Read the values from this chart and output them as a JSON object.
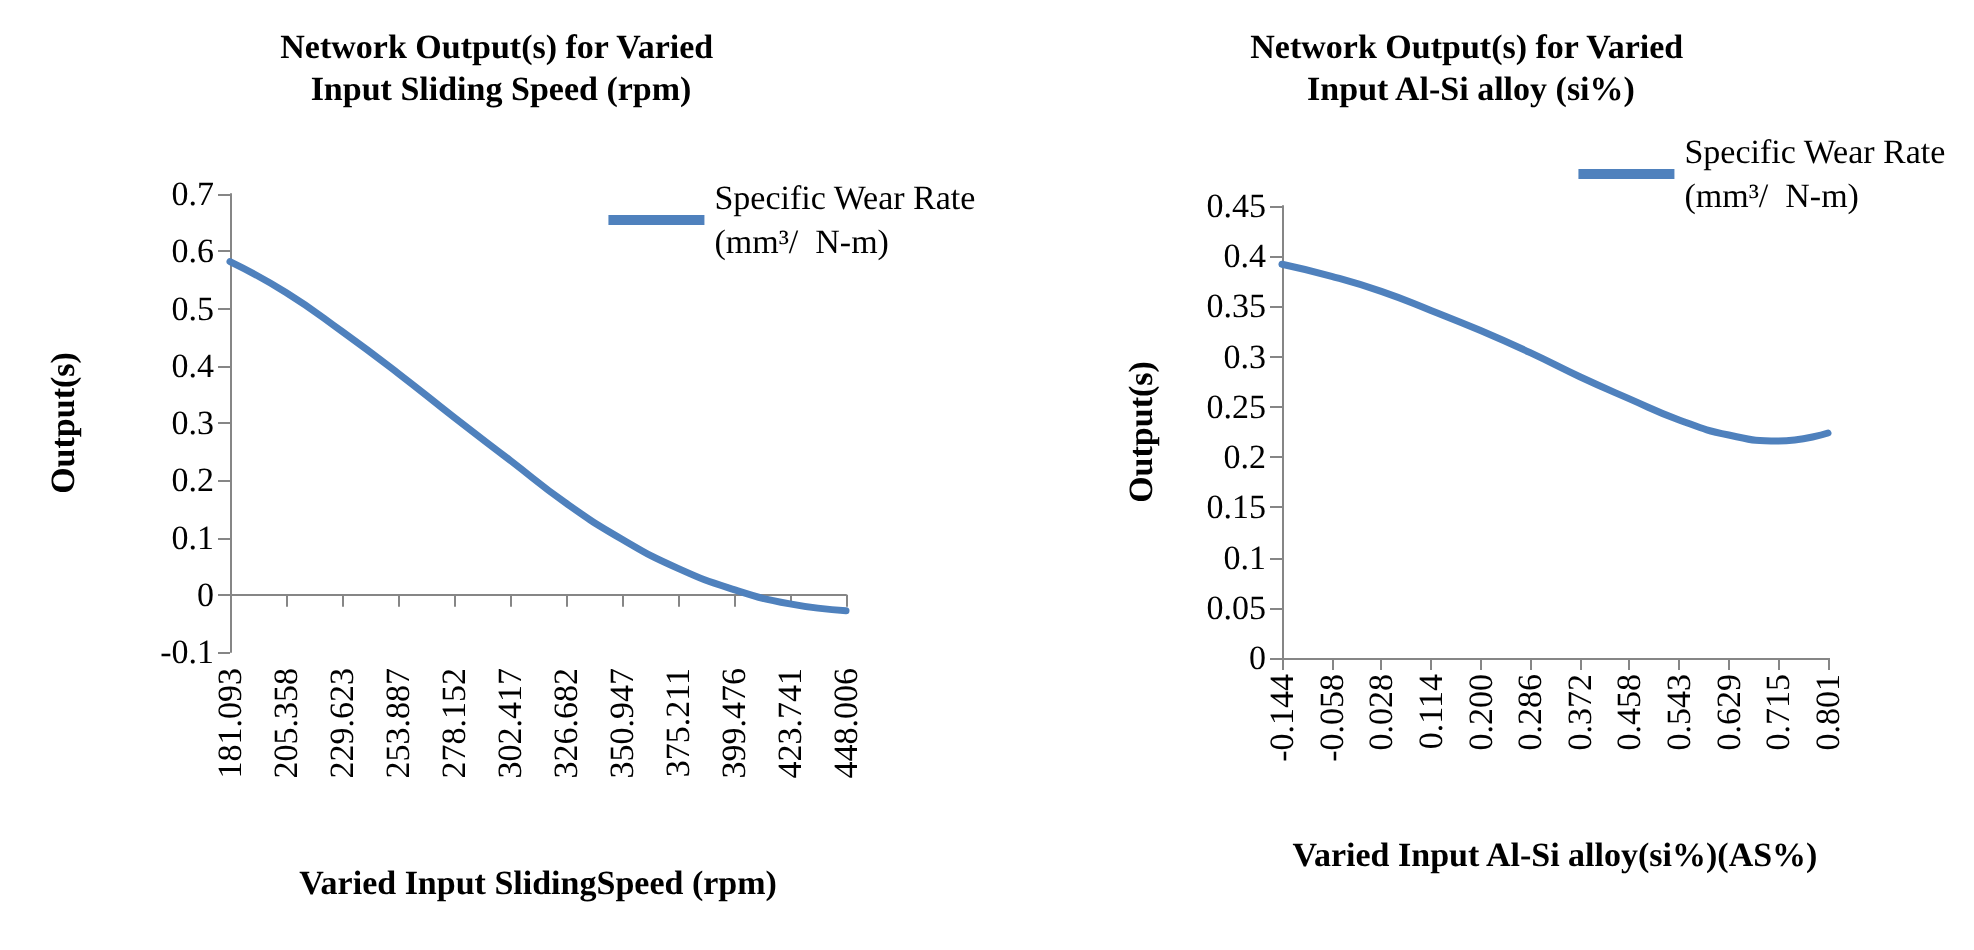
{
  "chart_data": [
    {
      "type": "line",
      "title": "Network Output(s) for Varied Input Sliding Speed (rpm)",
      "xlabel": "Varied Input SlidingSpeed (rpm)",
      "ylabel": "Output(s)",
      "categories": [
        "181.093",
        "205.358",
        "229.623",
        "253.887",
        "278.152",
        "302.417",
        "326.682",
        "350.947",
        "375.211",
        "399.476",
        "423.741",
        "448.006"
      ],
      "series": [
        {
          "name": "Specific Wear Rate\n(mm³/  N-m)",
          "color": "#4f81bd",
          "values": [
            0.582,
            0.528,
            0.46,
            0.387,
            0.31,
            0.235,
            0.16,
            0.097,
            0.046,
            0.009,
            -0.016,
            -0.028
          ]
        }
      ],
      "ylim": [
        -0.1,
        0.7
      ],
      "yticks": [
        -0.1,
        0,
        0.1,
        0.2,
        0.3,
        0.4,
        0.5,
        0.6,
        0.7
      ],
      "grid": false,
      "legend": "top right",
      "marker": "none",
      "line_style": "solid"
    },
    {
      "type": "line",
      "title": "Network Output(s) for Varied Input Al-Si alloy (si%)",
      "xlabel": "Varied Input Al-Si alloy(si%)(AS%)",
      "ylabel": "Output(s)",
      "categories": [
        "-0.144",
        "-0.058",
        "0.028",
        "0.114",
        "0.200",
        "0.286",
        "0.372",
        "0.458",
        "0.543",
        "0.629",
        "0.715",
        "0.801"
      ],
      "series": [
        {
          "name": "Specific Wear Rate\n(mm³/  N-m)",
          "color": "#4f81bd",
          "values": [
            0.392,
            0.38,
            0.365,
            0.346,
            0.326,
            0.304,
            0.28,
            0.258,
            0.237,
            0.222,
            0.216,
            0.224
          ]
        }
      ],
      "ylim": [
        0,
        0.45
      ],
      "yticks": [
        0,
        0.05,
        0.1,
        0.15,
        0.2,
        0.25,
        0.3,
        0.35,
        0.4,
        0.45
      ],
      "grid": false,
      "legend": "top right",
      "marker": "none",
      "line_style": "solid"
    }
  ]
}
